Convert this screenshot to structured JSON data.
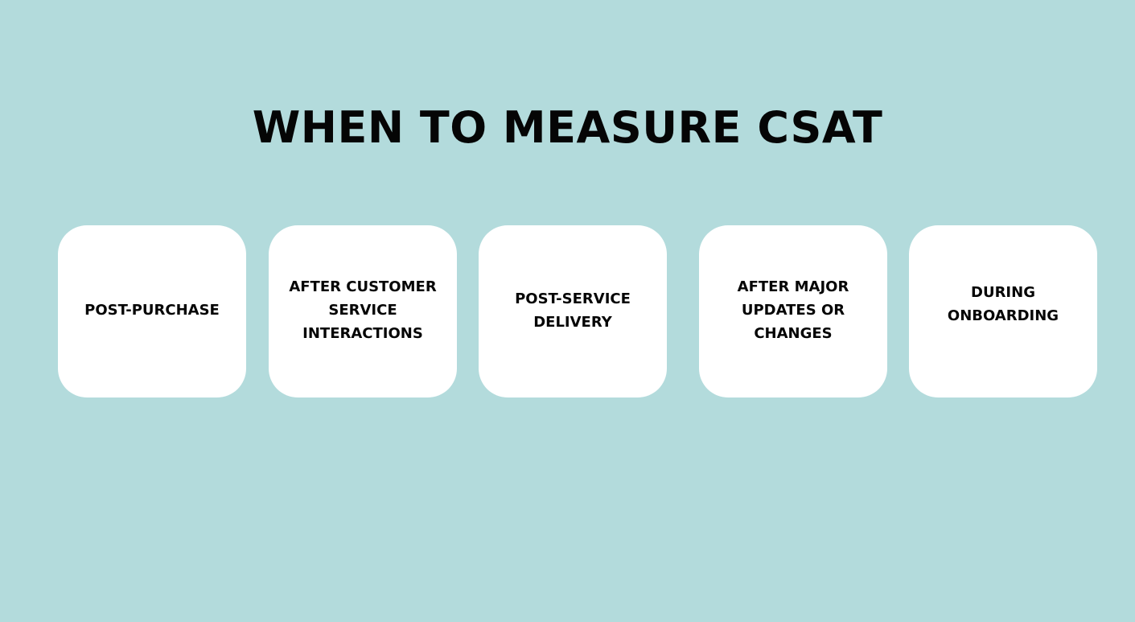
{
  "title": "WHEN TO MEASURE CSAT",
  "colors": {
    "background": "#b3dbdc",
    "card": "#ffffff",
    "text": "#050505"
  },
  "cards": [
    {
      "label": "POST-PURCHASE"
    },
    {
      "label": "AFTER CUSTOMER SERVICE INTERACTIONS"
    },
    {
      "label": "POST-SERVICE DELIVERY"
    },
    {
      "label": "AFTER MAJOR UPDATES OR CHANGES"
    },
    {
      "label": "DURING ONBOARDING"
    }
  ]
}
